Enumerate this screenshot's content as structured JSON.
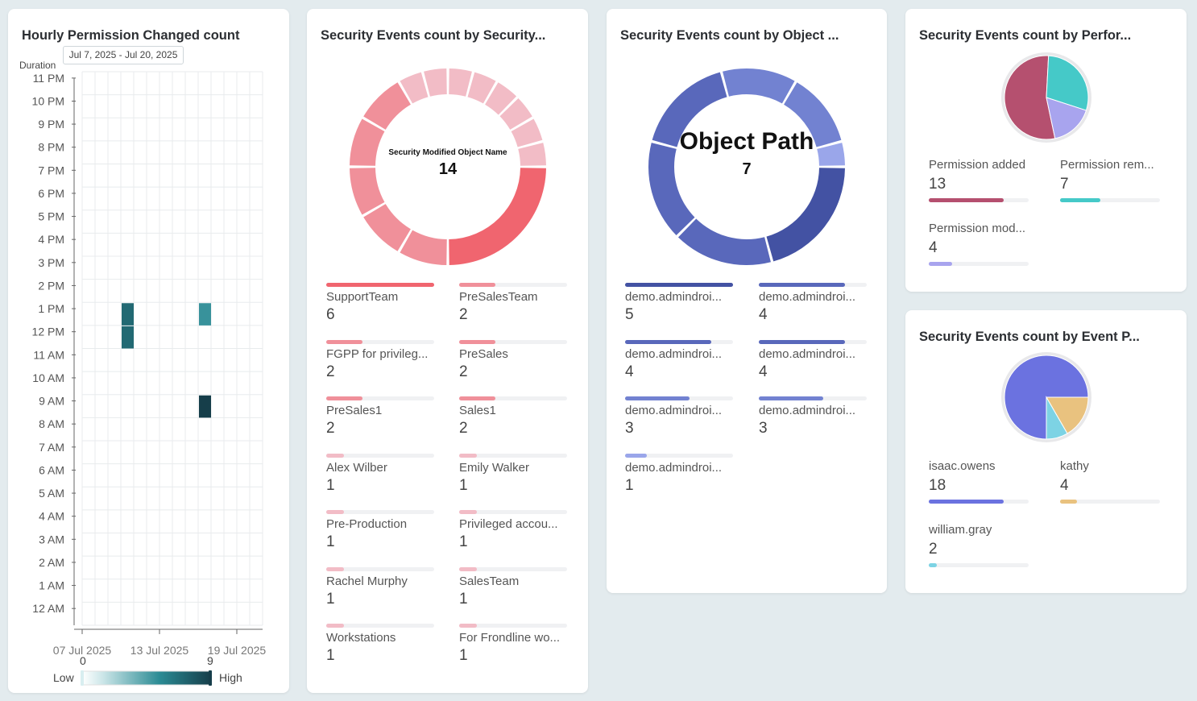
{
  "heatmap": {
    "title": "Hourly Permission Changed count",
    "duration_label": "Duration",
    "duration_value": "Jul 7, 2025 - Jul 20, 2025",
    "y_labels": [
      "11 PM",
      "10 PM",
      "9 PM",
      "8 PM",
      "7 PM",
      "6 PM",
      "5 PM",
      "4 PM",
      "3 PM",
      "2 PM",
      "1 PM",
      "12 PM",
      "11 AM",
      "10 AM",
      "9 AM",
      "8 AM",
      "7 AM",
      "6 AM",
      "5 AM",
      "4 AM",
      "3 AM",
      "2 AM",
      "1 AM",
      "12 AM"
    ],
    "x_labels": [
      "07 Jul 2025",
      "13 Jul 2025",
      "19 Jul 2025"
    ],
    "legend_min": "0",
    "legend_max": "9",
    "legend_low": "Low",
    "legend_high": "High",
    "colors": {
      "low": "#d8eef0",
      "mid": "#2b8b94",
      "high": "#163e4a"
    }
  },
  "chart_data": [
    {
      "type": "heatmap",
      "title": "Hourly Permission Changed count",
      "x_range": [
        "2025-07-07",
        "2025-07-20"
      ],
      "cells": [
        {
          "date": "2025-07-10",
          "hour": "1 PM",
          "value": 7
        },
        {
          "date": "2025-07-10",
          "hour": "12 PM",
          "value": 7
        },
        {
          "date": "2025-07-16",
          "hour": "1 PM",
          "value": 5
        },
        {
          "date": "2025-07-16",
          "hour": "9 AM",
          "value": 9
        }
      ],
      "scale": [
        0,
        9
      ]
    }
  ],
  "card2": {
    "title": "Security Events count by Security...",
    "center_label": "Security Modified Object Name",
    "center_value": "14",
    "items": [
      {
        "label": "SupportTeam",
        "value": 6,
        "color": "#f0656f"
      },
      {
        "label": "PreSalesTeam",
        "value": 2,
        "color": "#f0909a"
      },
      {
        "label": "FGPP for privileg...",
        "value": 2,
        "color": "#f0909a"
      },
      {
        "label": "PreSales",
        "value": 2,
        "color": "#f0909a"
      },
      {
        "label": "PreSales1",
        "value": 2,
        "color": "#f0909a"
      },
      {
        "label": "Sales1",
        "value": 2,
        "color": "#f0909a"
      },
      {
        "label": "Alex Wilber",
        "value": 1,
        "color": "#f2bcc6"
      },
      {
        "label": "Emily Walker",
        "value": 1,
        "color": "#f2bcc6"
      },
      {
        "label": "Pre-Production",
        "value": 1,
        "color": "#f2bcc6"
      },
      {
        "label": "Privileged accou...",
        "value": 1,
        "color": "#f2bcc6"
      },
      {
        "label": "Rachel Murphy",
        "value": 1,
        "color": "#f2bcc6"
      },
      {
        "label": "SalesTeam",
        "value": 1,
        "color": "#f2bcc6"
      },
      {
        "label": "Workstations",
        "value": 1,
        "color": "#f2bcc6"
      },
      {
        "label": "For Frondline wo...",
        "value": 1,
        "color": "#f2bcc6"
      }
    ]
  },
  "card3": {
    "title": "Security Events count by Object ...",
    "center_label": "Object Path",
    "center_value": "7",
    "items": [
      {
        "label": "demo.admindroi...",
        "value": 5,
        "color": "#4352a3"
      },
      {
        "label": "demo.admindroi...",
        "value": 4,
        "color": "#5968bb"
      },
      {
        "label": "demo.admindroi...",
        "value": 4,
        "color": "#5968bb"
      },
      {
        "label": "demo.admindroi...",
        "value": 4,
        "color": "#5968bb"
      },
      {
        "label": "demo.admindroi...",
        "value": 3,
        "color": "#7282d1"
      },
      {
        "label": "demo.admindroi...",
        "value": 3,
        "color": "#7282d1"
      },
      {
        "label": "demo.admindroi...",
        "value": 1,
        "color": "#9aa6ea"
      }
    ]
  },
  "card4": {
    "title": "Security Events count by Perfor...",
    "items": [
      {
        "label": "Permission added",
        "value": 13,
        "color": "#b5506f"
      },
      {
        "label": "Permission rem...",
        "value": 7,
        "color": "#45c9c8"
      },
      {
        "label": "Permission mod...",
        "value": 4,
        "color": "#a8a4ee"
      }
    ]
  },
  "card5": {
    "title": "Security Events count by Event P...",
    "items": [
      {
        "label": "isaac.owens",
        "value": 18,
        "color": "#6b72e0"
      },
      {
        "label": "kathy",
        "value": 4,
        "color": "#e9c27f"
      },
      {
        "label": "william.gray",
        "value": 2,
        "color": "#7dd3e4"
      }
    ]
  }
}
